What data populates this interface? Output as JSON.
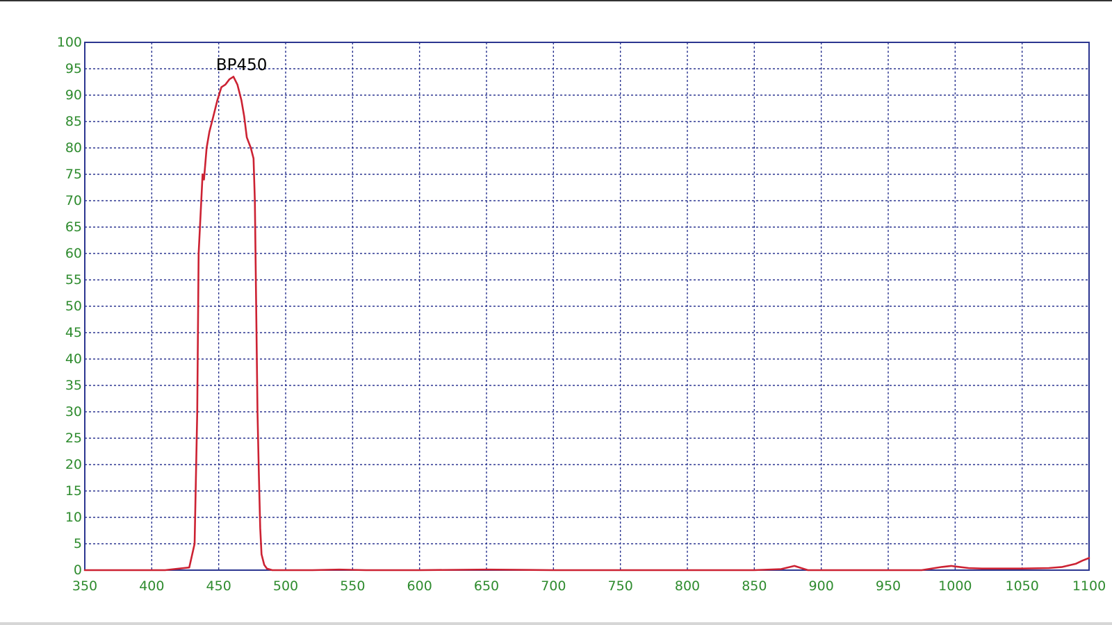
{
  "chart_data": {
    "type": "line",
    "title": "",
    "xlabel": "",
    "ylabel": "",
    "xlim": [
      350,
      1100
    ],
    "ylim": [
      0,
      100
    ],
    "xticks": [
      350,
      400,
      450,
      500,
      550,
      600,
      650,
      700,
      750,
      800,
      850,
      900,
      950,
      1000,
      1050,
      1100
    ],
    "yticks": [
      0,
      5,
      10,
      15,
      20,
      25,
      30,
      35,
      40,
      45,
      50,
      55,
      60,
      65,
      70,
      75,
      80,
      85,
      90,
      95,
      100
    ],
    "grid": true,
    "legend": "none",
    "colors": {
      "line": "#cc2233",
      "grid": "#2b3590",
      "frame": "#2b3590",
      "tick_labels": "#2e8b2e",
      "annotation": "#000000"
    },
    "annotations": [
      {
        "text": "BP450",
        "x": 461,
        "y": 95
      }
    ],
    "series": [
      {
        "x": [
          350,
          380,
          410,
          428,
          432,
          434,
          435,
          437,
          438,
          439,
          441,
          443,
          446,
          449,
          452,
          455,
          458,
          461,
          464,
          467,
          469,
          471,
          474,
          476,
          477,
          478,
          479,
          480,
          481,
          482,
          484,
          486,
          490,
          495,
          520,
          540,
          560,
          600,
          650,
          700,
          750,
          800,
          850,
          870,
          880,
          885,
          890,
          900,
          950,
          975,
          990,
          997,
          1000,
          1010,
          1020,
          1050,
          1070,
          1080,
          1090,
          1095,
          1100
        ],
        "y": [
          0,
          0,
          0,
          0.5,
          5,
          30,
          60,
          70,
          75,
          74,
          80,
          83,
          86,
          89,
          91.5,
          92,
          93,
          93.5,
          92,
          89,
          86,
          82,
          80,
          78,
          70,
          50,
          30,
          18,
          8,
          3,
          1,
          0.3,
          0,
          0,
          0,
          0.1,
          0,
          0,
          0.1,
          0,
          0,
          0,
          0,
          0.2,
          0.8,
          0.4,
          0,
          0,
          0,
          0,
          0.6,
          0.8,
          0.7,
          0.4,
          0.3,
          0.3,
          0.4,
          0.6,
          1.2,
          1.8,
          2.3
        ]
      }
    ]
  }
}
